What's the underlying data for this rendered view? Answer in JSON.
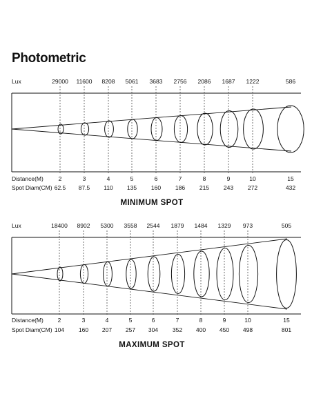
{
  "title": "Photometric",
  "panels": [
    {
      "caption": "MINIMUM SPOT",
      "lux_label": "Lux",
      "distance_label": "Distance(M)",
      "diam_label": "Spot Diam(CM)",
      "lux": [
        "29000",
        "11600",
        "8208",
        "5061",
        "3683",
        "2756",
        "2086",
        "1687",
        "1222",
        "586"
      ],
      "distance": [
        "2",
        "3",
        "4",
        "5",
        "6",
        "7",
        "8",
        "9",
        "10",
        "15"
      ],
      "diameter": [
        "62.5",
        "87.5",
        "110",
        "135",
        "160",
        "186",
        "215",
        "243",
        "272",
        "432"
      ]
    },
    {
      "caption": "MAXIMUM SPOT",
      "lux_label": "Lux",
      "distance_label": "Distance(M)",
      "diam_label": "Spot Diam(CM)",
      "lux": [
        "18400",
        "8902",
        "5300",
        "3558",
        "2544",
        "1879",
        "1484",
        "1329",
        "973",
        "505"
      ],
      "distance": [
        "2",
        "3",
        "4",
        "5",
        "6",
        "7",
        "8",
        "9",
        "10",
        "15"
      ],
      "diameter": [
        "104",
        "160",
        "207",
        "257",
        "304",
        "352",
        "400",
        "450",
        "498",
        "801"
      ]
    }
  ]
}
